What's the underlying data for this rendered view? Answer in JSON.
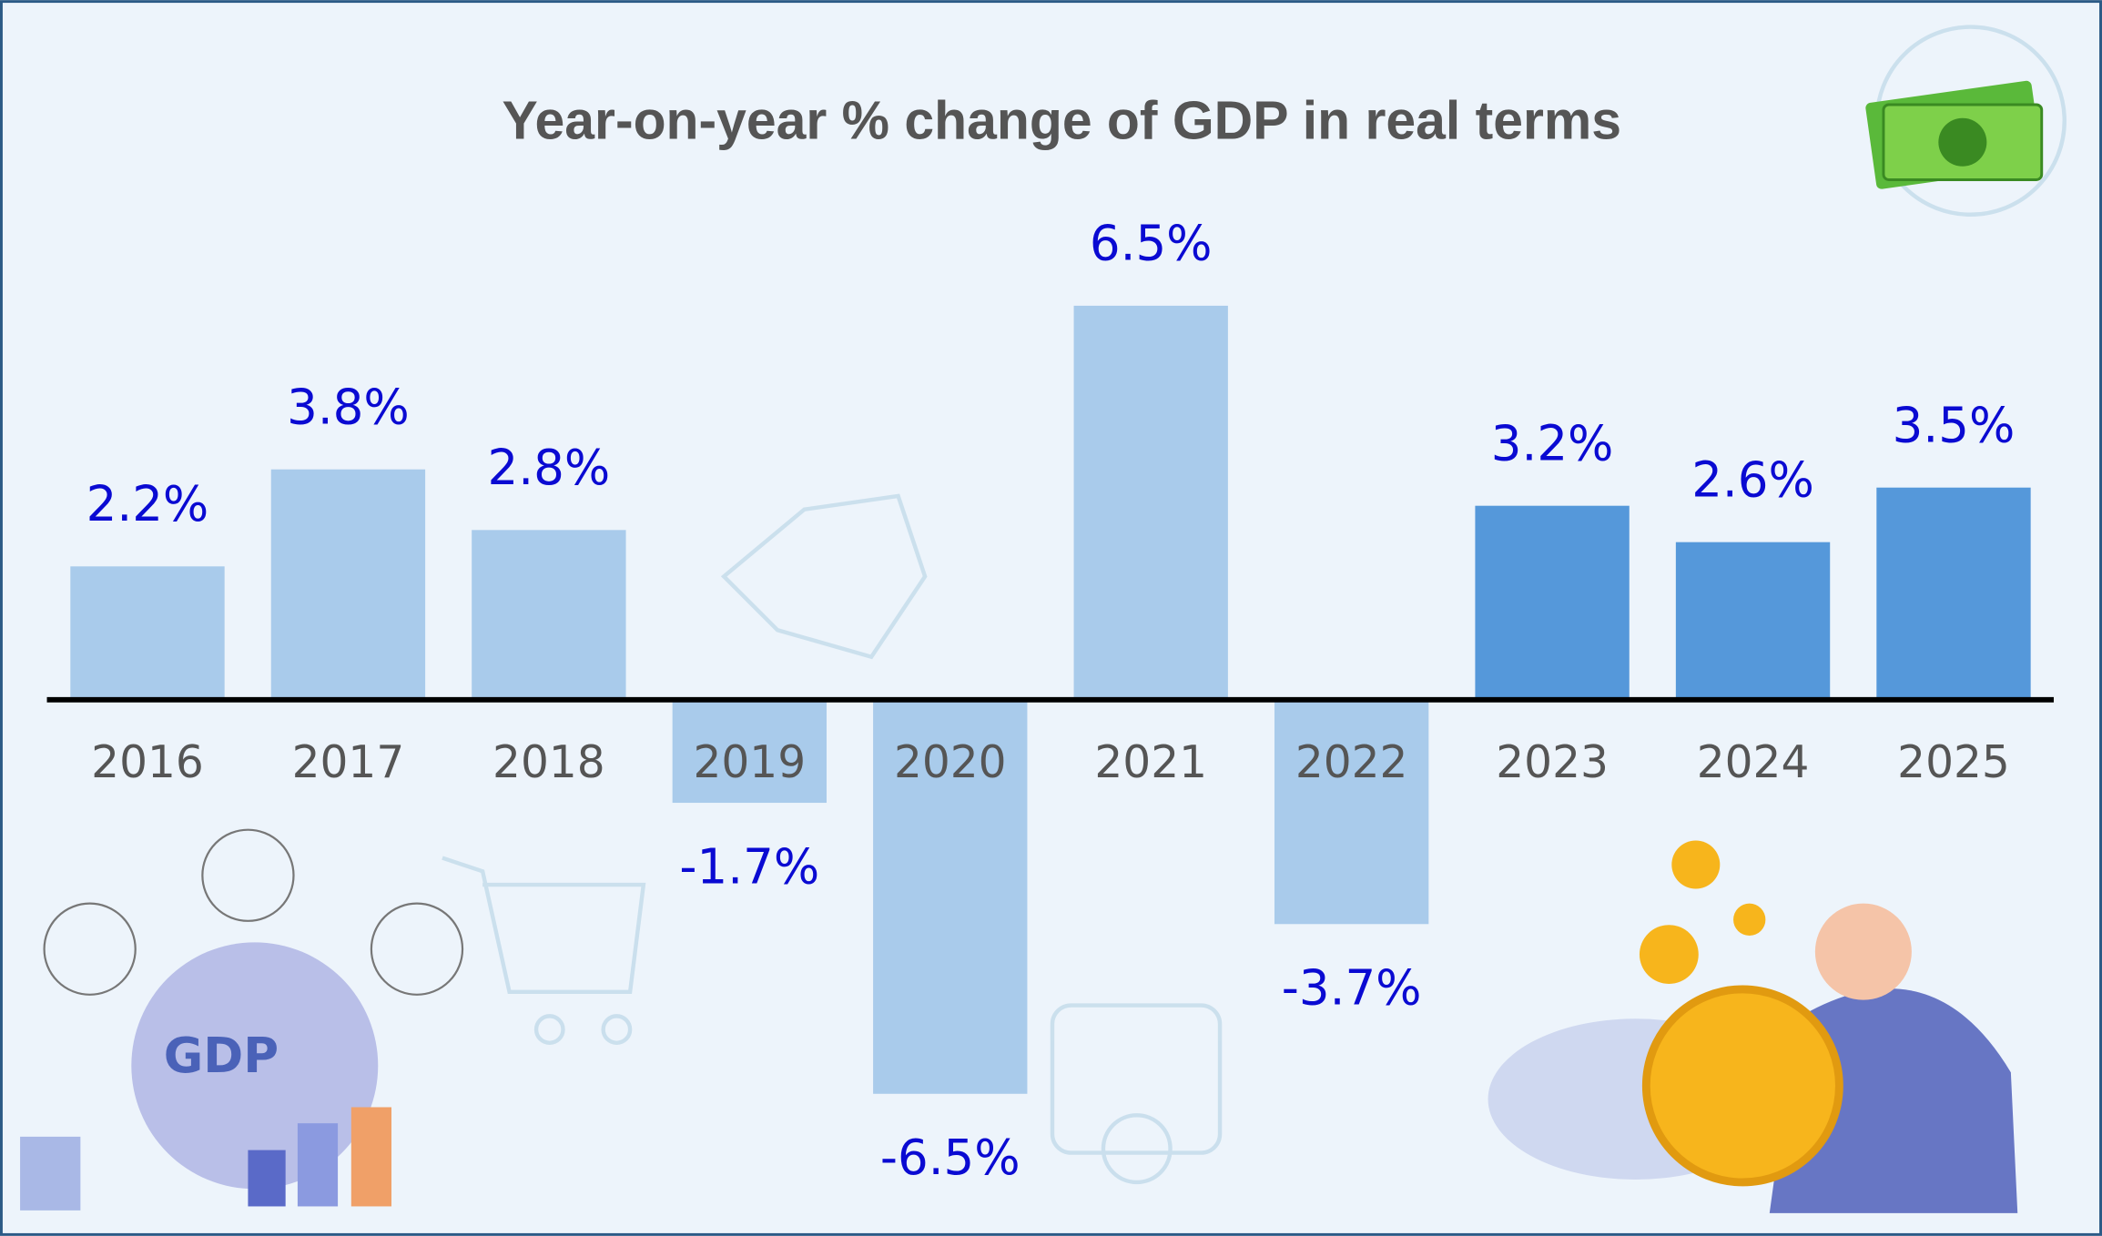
{
  "chart_data": {
    "type": "bar",
    "title": "Year-on-year % change of GDP in real terms",
    "categories": [
      "2016",
      "2017",
      "2018",
      "2019",
      "2020",
      "2021",
      "2022",
      "2023",
      "2024",
      "2025"
    ],
    "values": [
      2.2,
      3.8,
      2.8,
      -1.7,
      -6.5,
      6.5,
      -3.7,
      3.2,
      2.6,
      3.5
    ],
    "value_labels": [
      "2.2%",
      "3.8%",
      "2.8%",
      "-1.7%",
      "-6.5%",
      "6.5%",
      "-3.7%",
      "3.2%",
      "2.6%",
      "3.5%"
    ],
    "colors": [
      "#a9cbeb",
      "#a9cbeb",
      "#a9cbeb",
      "#a9cbeb",
      "#a9cbeb",
      "#a9cbeb",
      "#a9cbeb",
      "#5598da",
      "#5598da",
      "#5598da"
    ],
    "decoration_text": "GDP"
  }
}
